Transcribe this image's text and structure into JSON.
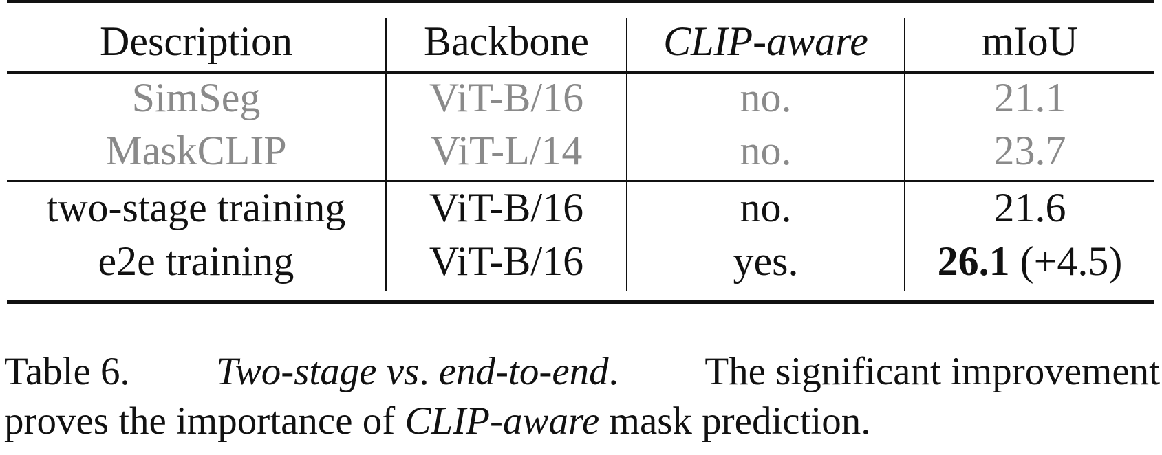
{
  "table": {
    "headers": [
      "Description",
      "Backbone",
      "CLIP-aware",
      "mIoU"
    ],
    "baseline_rows": [
      {
        "description": "SimSeg",
        "backbone": "ViT-B/16",
        "clip_aware": "no.",
        "miou": "21.1"
      },
      {
        "description": "MaskCLIP",
        "backbone": "ViT-L/14",
        "clip_aware": "no.",
        "miou": "23.7"
      }
    ],
    "rows": [
      {
        "description": "two-stage training",
        "backbone": "ViT-B/16",
        "clip_aware": "no.",
        "miou": "21.6"
      },
      {
        "description": "e2e training",
        "backbone": "ViT-B/16",
        "clip_aware": "yes.",
        "miou_bold": "26.1",
        "miou_delta": "(+4.5)"
      }
    ]
  },
  "caption": {
    "label": "Table 6.",
    "title_part1": "Two-stage vs",
    "title_part2": ". ",
    "title_part3": "end-to-end",
    "title_part4": ".",
    "text_line1": "The significant improvement",
    "text_line2_a": "proves the importance of ",
    "text_line2_em": "CLIP-aware",
    "text_line2_b": " mask prediction."
  }
}
